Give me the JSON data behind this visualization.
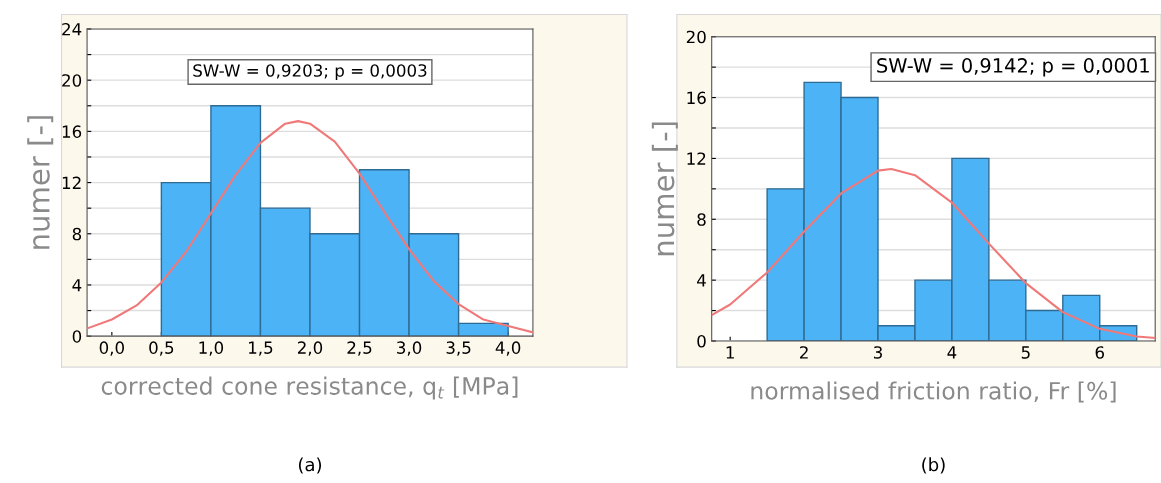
{
  "chart_data": [
    {
      "type": "histogram",
      "xlabel": "corrected cone resistance, q$_{t}$ [MPa]",
      "ylabel": "numer [-]",
      "color": "#4db3f7",
      "bins": [
        0.5,
        1.0,
        1.5,
        2.0,
        2.5,
        3.0,
        3.5,
        4.0
      ],
      "values": [
        12,
        18,
        10,
        8,
        13,
        8,
        1
      ],
      "series": [
        {
          "type": "line",
          "color": "#f07878",
          "x": [
            -0.25,
            0.0,
            0.25,
            0.5,
            0.75,
            1.0,
            1.25,
            1.5,
            1.75,
            1.88,
            2.0,
            2.25,
            2.5,
            2.75,
            3.0,
            3.25,
            3.5,
            3.75,
            4.0,
            4.25
          ],
          "values": [
            0.6,
            1.3,
            2.4,
            4.2,
            6.6,
            9.6,
            12.6,
            15.1,
            16.6,
            16.8,
            16.6,
            15.2,
            12.7,
            9.7,
            6.8,
            4.3,
            2.5,
            1.3,
            0.8,
            0.3
          ]
        }
      ],
      "xlim": [
        -0.25,
        4.25
      ],
      "ylim": [
        0,
        24
      ],
      "xticks": [
        {
          "value": 0,
          "label": "0,0"
        },
        {
          "value": 0.5,
          "label": "0,5"
        },
        {
          "value": 1,
          "label": "1,0"
        },
        {
          "value": 1.5,
          "label": "1,5"
        },
        {
          "value": 2,
          "label": "2,0"
        },
        {
          "value": 2.5,
          "label": "2,5"
        },
        {
          "value": 3,
          "label": "3,0"
        },
        {
          "value": 3.5,
          "label": "3,5"
        },
        {
          "value": 4,
          "label": "4,0"
        }
      ],
      "yticks": [
        0,
        {
          "value": 2,
          "label": null
        },
        4,
        {
          "value": 6,
          "label": null
        },
        8,
        {
          "value": 10,
          "label": null
        },
        12,
        {
          "value": 14,
          "label": null
        },
        16,
        {
          "value": 18,
          "label": null
        },
        20,
        {
          "value": 22,
          "label": null
        },
        24
      ],
      "grid": "y",
      "annotations": [
        "SW-W = 0,9203; p = 0,0003",
        "(a)"
      ]
    },
    {
      "type": "histogram",
      "xlabel": "normalised friction ratio, Fr [%]",
      "ylabel": "numer [-]",
      "color": "#4db3f7",
      "bins": [
        1.5,
        2.0,
        2.5,
        3.0,
        3.5,
        4.0,
        4.5,
        5.0,
        5.5,
        6.0,
        6.5
      ],
      "values": [
        10,
        17,
        16,
        1,
        4,
        12,
        4,
        2,
        3,
        1
      ],
      "series": [
        {
          "type": "line",
          "color": "#f07878",
          "x": [
            0.75,
            1.0,
            1.5,
            2.0,
            2.5,
            3.0,
            3.18,
            3.5,
            4.0,
            4.5,
            5.0,
            5.5,
            6.0,
            6.5,
            6.75
          ],
          "values": [
            1.7,
            2.4,
            4.5,
            7.2,
            9.7,
            11.2,
            11.3,
            10.9,
            9.1,
            6.4,
            3.8,
            1.9,
            0.8,
            0.3,
            0.2
          ]
        }
      ],
      "xlim": [
        0.75,
        6.75
      ],
      "ylim": [
        0,
        20
      ],
      "xticks": [
        1,
        2,
        3,
        4,
        5,
        6
      ],
      "yticks": [
        0,
        {
          "value": 2,
          "label": null
        },
        4,
        {
          "value": 6,
          "label": null
        },
        8,
        {
          "value": 10,
          "label": null
        },
        12,
        {
          "value": 14,
          "label": null
        },
        16,
        {
          "value": 18,
          "label": null
        },
        20
      ],
      "grid": "y",
      "annotations": [
        "SW-W = 0,9142; p = 0,0001",
        "(b)"
      ]
    }
  ]
}
